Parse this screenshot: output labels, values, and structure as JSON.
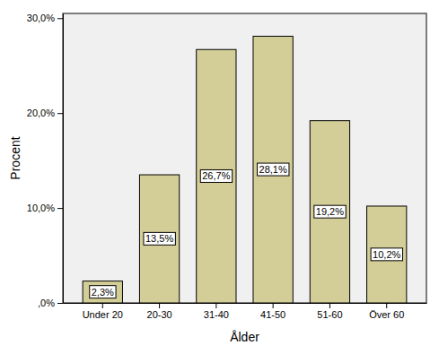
{
  "chart_data": {
    "type": "bar",
    "x_label": "Ålder",
    "y_label": "Procent",
    "categories": [
      "Under 20",
      "20-30",
      "31-40",
      "41-50",
      "51-60",
      "Över 60"
    ],
    "values": [
      2.3,
      13.5,
      26.7,
      28.1,
      19.2,
      10.2
    ],
    "value_labels": [
      "2,3%",
      "13,5%",
      "26,7%",
      "28,1%",
      "19,2%",
      "10,2%"
    ],
    "data_labels": true,
    "color": "#d3ce97",
    "ylim": [
      0,
      30.5
    ],
    "yticks": [
      {
        "value": 0,
        "label": ",0%"
      },
      {
        "value": 10,
        "label": "10,0%"
      },
      {
        "value": 20,
        "label": "20,0%"
      },
      {
        "value": 30,
        "label": "30,0%"
      }
    ],
    "grid": false
  }
}
